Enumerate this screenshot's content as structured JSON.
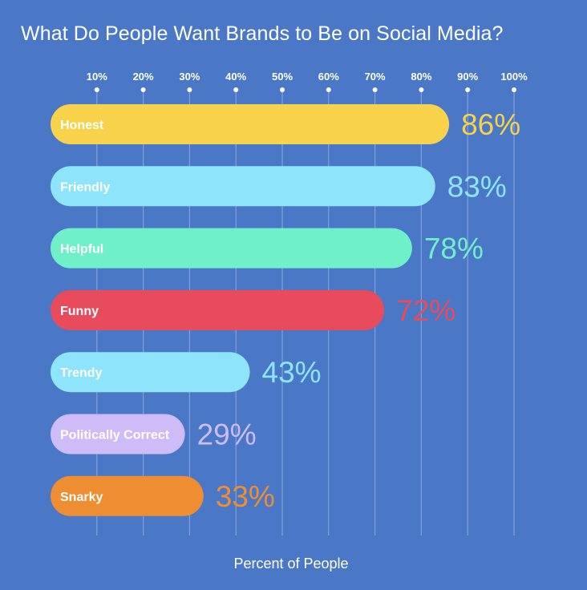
{
  "chart_data": {
    "type": "bar",
    "orientation": "horizontal",
    "title": "What Do People Want Brands to Be on Social Media?",
    "xlabel": "Percent of People",
    "ylabel": "",
    "xlim": [
      0,
      100
    ],
    "ticks": [
      10,
      20,
      30,
      40,
      50,
      60,
      70,
      80,
      90,
      100
    ],
    "tick_labels": [
      "10%",
      "20%",
      "30%",
      "40%",
      "50%",
      "60%",
      "70%",
      "80%",
      "90%",
      "100%"
    ],
    "grid": true,
    "categories": [
      "Honest",
      "Friendly",
      "Helpful",
      "Funny",
      "Trendy",
      "Politically Correct",
      "Snarky"
    ],
    "values": [
      86,
      83,
      78,
      72,
      43,
      29,
      33
    ],
    "value_labels": [
      "86%",
      "83%",
      "78%",
      "72%",
      "43%",
      "29%",
      "33%"
    ],
    "colors": [
      "#f7d24a",
      "#8de4fb",
      "#6ff0c8",
      "#e84c5c",
      "#8de4fb",
      "#cdbcf7",
      "#ef8d33"
    ]
  },
  "style": {
    "background": "#4a78c7",
    "grid_color": "#7ea2dc",
    "text_color": "#ffffff"
  }
}
